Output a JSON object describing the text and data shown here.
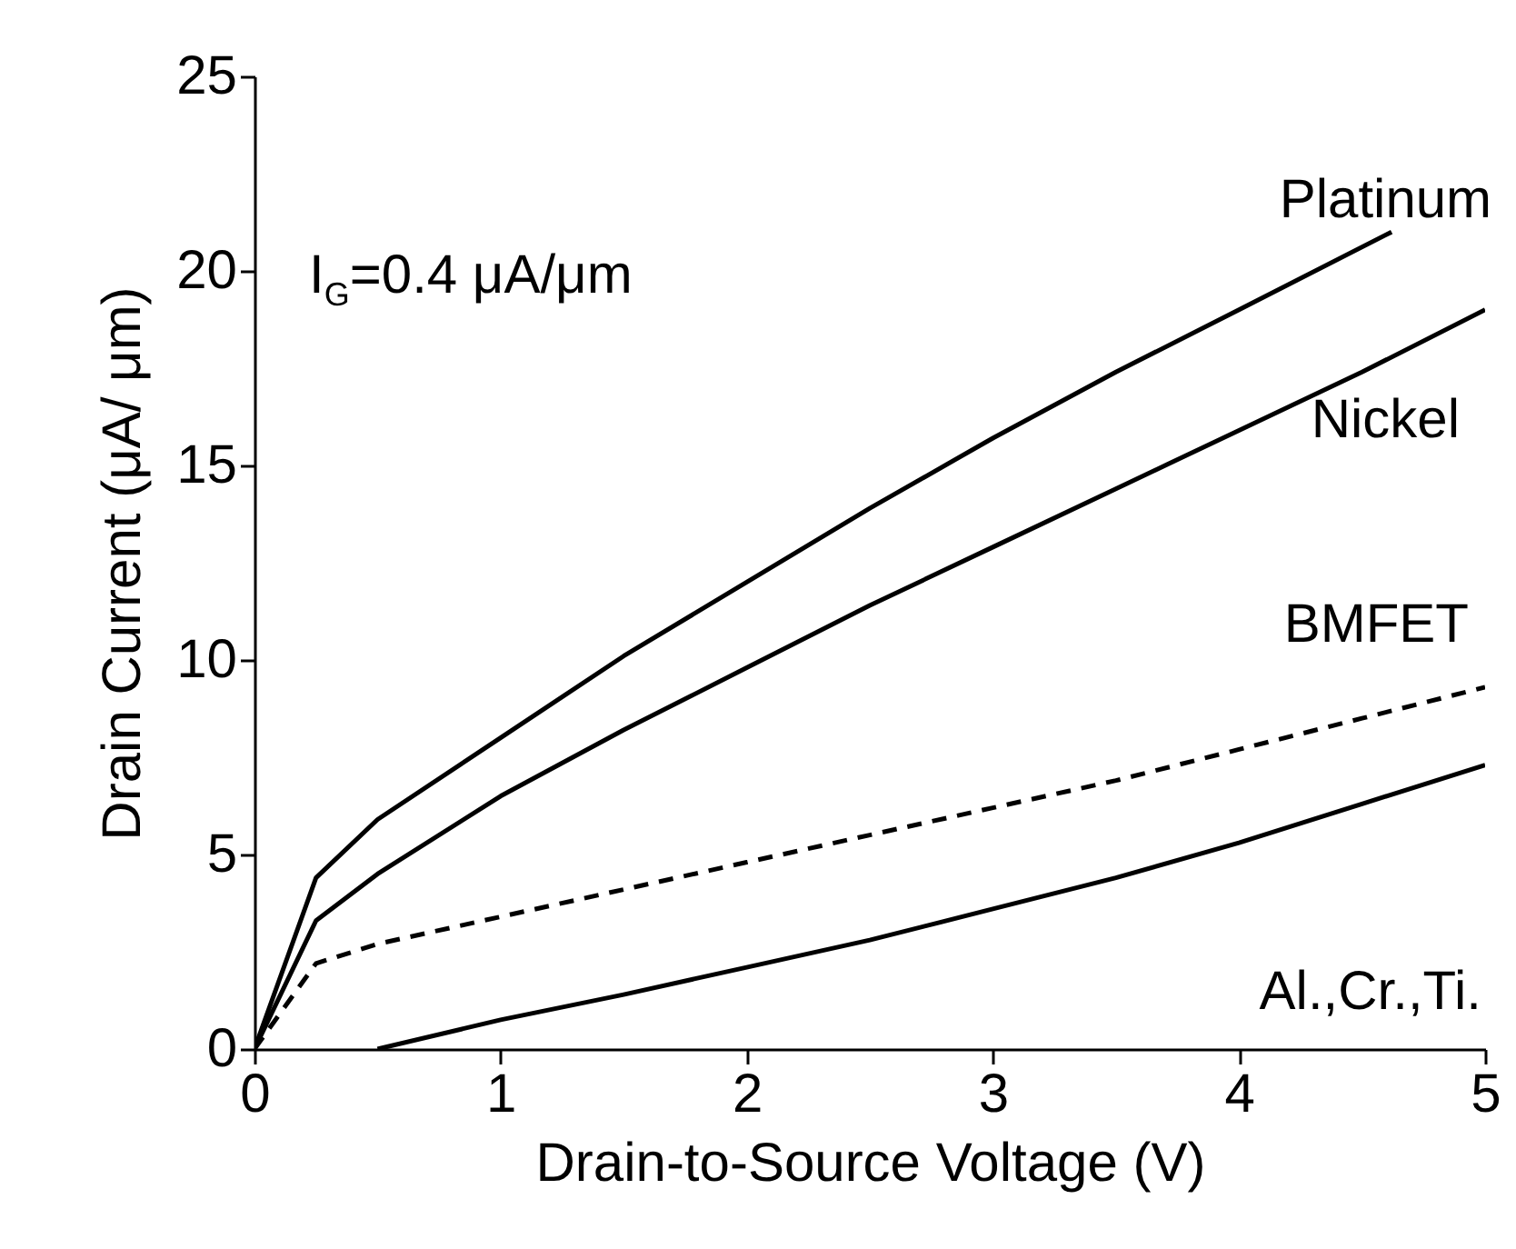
{
  "chart_data": {
    "type": "line",
    "xlabel": "Drain-to-Source Voltage (V)",
    "ylabel": "Drain Current (μA/ μm)",
    "annotations": [
      "I$_{G}$=0.4 μA/μm"
    ],
    "xlim": [
      0,
      5
    ],
    "xticks": [
      0,
      1,
      2,
      3,
      4,
      5
    ],
    "ylim": [
      0,
      25
    ],
    "yticks": [
      0,
      5,
      10,
      15,
      20,
      25
    ],
    "grid": false,
    "series": [
      {
        "name": "Platinum",
        "color": "#000000",
        "line_style": "solid",
        "x": [
          0,
          0.25,
          0.5,
          1,
          1.5,
          2,
          2.5,
          3,
          3.5,
          4,
          4.62
        ],
        "values": [
          0,
          4.4,
          5.9,
          8.0,
          10.1,
          12.0,
          13.9,
          15.7,
          17.4,
          19.0,
          21.0
        ]
      },
      {
        "name": "Nickel",
        "color": "#000000",
        "line_style": "solid",
        "x": [
          0,
          0.25,
          0.5,
          1,
          1.5,
          2,
          2.5,
          3,
          3.5,
          4,
          4.5,
          5
        ],
        "values": [
          0,
          3.3,
          4.5,
          6.5,
          8.2,
          9.8,
          11.4,
          12.9,
          14.4,
          15.9,
          17.4,
          19.0
        ]
      },
      {
        "name": "BMFET",
        "color": "#000000",
        "line_style": "dashed",
        "x": [
          0,
          0.25,
          0.5,
          1,
          1.5,
          2,
          2.5,
          3,
          3.5,
          4,
          4.5,
          5
        ],
        "values": [
          0,
          2.2,
          2.7,
          3.4,
          4.1,
          4.8,
          5.5,
          6.2,
          6.9,
          7.7,
          8.5,
          9.3
        ]
      },
      {
        "name": "Al.,Cr.,Ti.",
        "color": "#000000",
        "line_style": "solid",
        "x": [
          0.5,
          1,
          1.5,
          2,
          2.5,
          3,
          3.5,
          4,
          4.5,
          5
        ],
        "values": [
          0,
          0.75,
          1.4,
          2.1,
          2.8,
          3.6,
          4.4,
          5.3,
          6.3,
          7.3
        ]
      }
    ]
  }
}
